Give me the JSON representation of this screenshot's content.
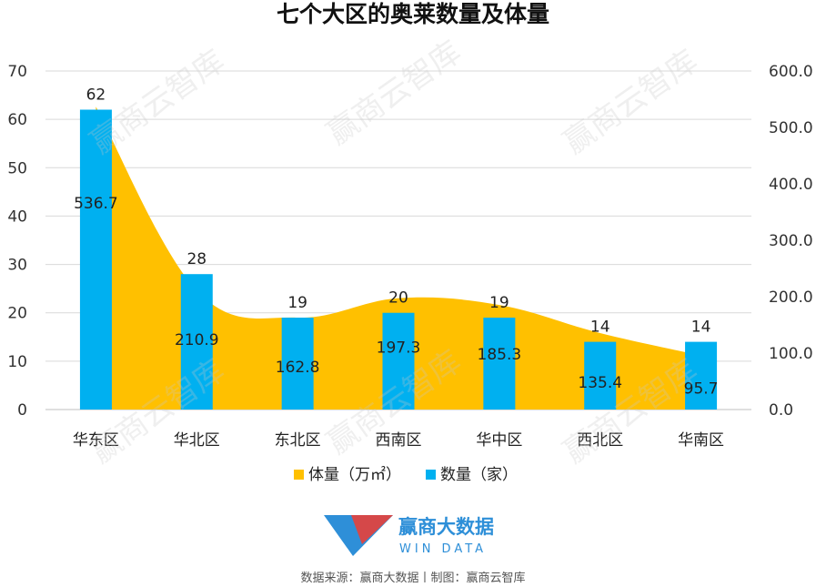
{
  "chart_data": {
    "type": "bar",
    "title": "七个大区的奥莱数量及体量",
    "categories": [
      "华东区",
      "华北区",
      "东北区",
      "西南区",
      "华中区",
      "西北区",
      "华南区"
    ],
    "series": [
      {
        "name": "体量（万㎡）",
        "type": "area",
        "axis": "right",
        "color": "#FFC000",
        "values": [
          536.7,
          210.9,
          162.8,
          197.3,
          185.3,
          135.4,
          95.7
        ]
      },
      {
        "name": "数量（家）",
        "type": "bar",
        "axis": "left",
        "color": "#00B0F0",
        "values": [
          62,
          28,
          19,
          20,
          19,
          14,
          14
        ]
      }
    ],
    "y_left": {
      "min": 0,
      "max": 70,
      "step": 10,
      "ticks": [
        "0",
        "10",
        "20",
        "30",
        "40",
        "50",
        "60",
        "70"
      ]
    },
    "y_right": {
      "min": 0,
      "max": 600,
      "step": 100,
      "ticks": [
        "0.0",
        "100.0",
        "200.0",
        "300.0",
        "400.0",
        "500.0",
        "600.0"
      ]
    },
    "grid": true,
    "legend_position": "bottom"
  },
  "brand": {
    "name_cn": "赢商大数据",
    "name_en": "WIN DATA",
    "colors": [
      "#2e8fd8",
      "#e8403a"
    ]
  },
  "source_text": "数据来源：赢商大数据丨制图：赢商云智库",
  "watermark_text": "赢商云智库"
}
